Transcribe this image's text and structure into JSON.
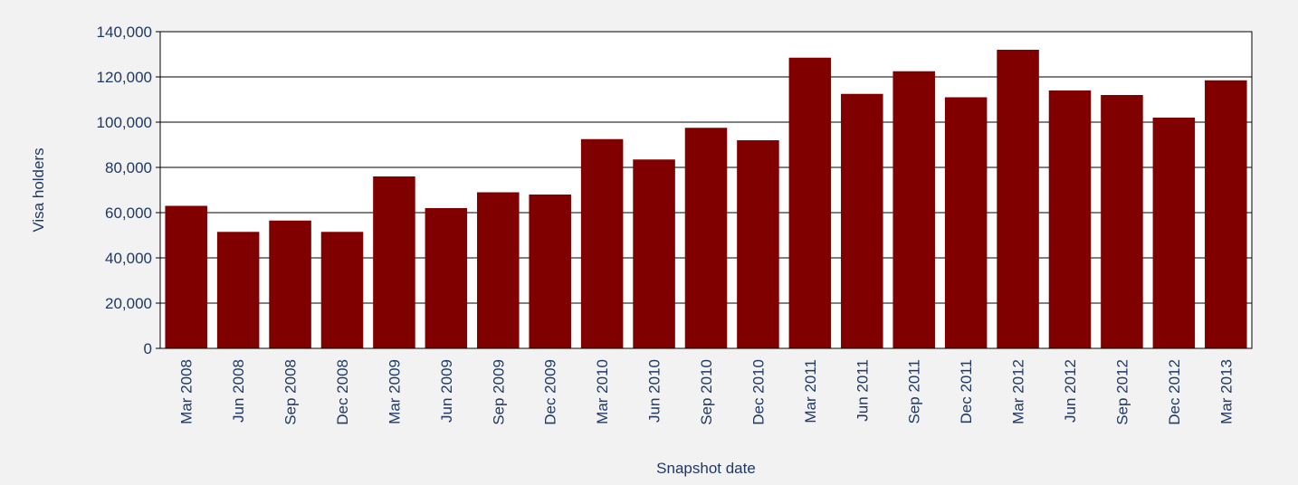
{
  "chart_data": {
    "type": "bar",
    "title": "",
    "xlabel": "Snapshot date",
    "ylabel": "Visa holders",
    "categories": [
      "Mar 2008",
      "Jun 2008",
      "Sep 2008",
      "Dec 2008",
      "Mar 2009",
      "Jun 2009",
      "Sep 2009",
      "Dec 2009",
      "Mar 2010",
      "Jun 2010",
      "Sep 2010",
      "Dec 2010",
      "Mar 2011",
      "Jun 2011",
      "Sep 2011",
      "Dec 2011",
      "Mar 2012",
      "Jun 2012",
      "Sep 2012",
      "Dec 2012",
      "Mar 2013"
    ],
    "values": [
      63000,
      51500,
      56500,
      51500,
      76000,
      62000,
      69000,
      68000,
      92500,
      83500,
      97500,
      92000,
      128500,
      112500,
      122500,
      111000,
      132000,
      114000,
      112000,
      102000,
      118500
    ],
    "ylim": [
      0,
      140000
    ],
    "yticks": [
      0,
      20000,
      40000,
      60000,
      80000,
      100000,
      120000,
      140000
    ],
    "ytick_labels": [
      "0",
      "20,000",
      "40,000",
      "60,000",
      "80,000",
      "100,000",
      "120,000",
      "140,000"
    ],
    "grid": true,
    "legend": "none",
    "colors": {
      "bar": "#800000",
      "text": "#1f3864",
      "grid": "#000000",
      "plot_background": "#ffffff",
      "page_background": "#f2f2f2"
    }
  }
}
